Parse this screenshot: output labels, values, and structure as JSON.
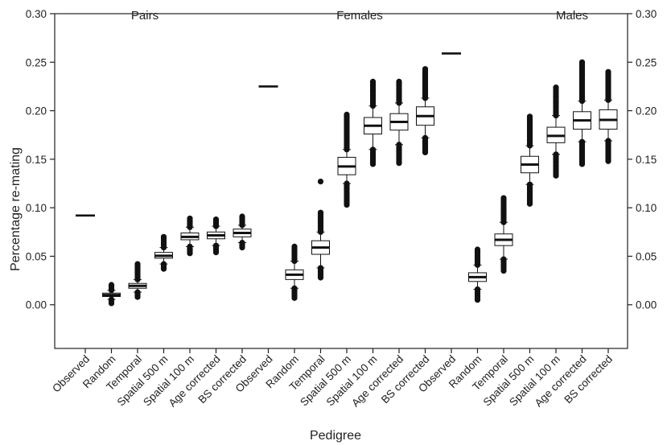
{
  "chart_data": {
    "type": "boxplot",
    "ylabel": "Percentage re-mating",
    "xlabel": "Pedigree",
    "ylim": [
      -0.045,
      0.3
    ],
    "yticks": [
      "0.00",
      "0.05",
      "0.10",
      "0.15",
      "0.20",
      "0.25",
      "0.30"
    ],
    "right_axis_ticks": true,
    "grid": false,
    "groups": [
      {
        "label": "Pairs",
        "items": [
          {
            "category": "Observed",
            "observed": 0.092
          },
          {
            "category": "Random",
            "q1": 0.0085,
            "median": 0.01,
            "q3": 0.012,
            "whisker_low": 0.0055,
            "whisker_high": 0.015,
            "outliers_low": [
              0.0015,
              0.0055
            ],
            "outliers_high": [
              0.015,
              0.0205
            ]
          },
          {
            "category": "Temporal",
            "q1": 0.017,
            "median": 0.0195,
            "q3": 0.022,
            "whisker_low": 0.013,
            "whisker_high": 0.026,
            "outliers_low": [
              0.008,
              0.013
            ],
            "outliers_high": [
              0.026,
              0.042
            ]
          },
          {
            "category": "Spatial 500 m",
            "q1": 0.048,
            "median": 0.0505,
            "q3": 0.054,
            "whisker_low": 0.042,
            "whisker_high": 0.059,
            "outliers_low": [
              0.037,
              0.042
            ],
            "outliers_high": [
              0.059,
              0.07
            ]
          },
          {
            "category": "Spatial 100 m",
            "q1": 0.067,
            "median": 0.07,
            "q3": 0.074,
            "whisker_low": 0.06,
            "whisker_high": 0.08,
            "outliers_low": [
              0.053,
              0.06
            ],
            "outliers_high": [
              0.08,
              0.089
            ]
          },
          {
            "category": "Age corrected",
            "q1": 0.068,
            "median": 0.0715,
            "q3": 0.075,
            "whisker_low": 0.061,
            "whisker_high": 0.081,
            "outliers_low": [
              0.054,
              0.061
            ],
            "outliers_high": [
              0.081,
              0.088
            ]
          },
          {
            "category": "BS corrected",
            "q1": 0.07,
            "median": 0.074,
            "q3": 0.078,
            "whisker_low": 0.064,
            "whisker_high": 0.082,
            "outliers_low": [
              0.059,
              0.064
            ],
            "outliers_high": [
              0.082,
              0.091
            ]
          }
        ]
      },
      {
        "label": "Females",
        "items": [
          {
            "category": "Observed",
            "observed": 0.225
          },
          {
            "category": "Random",
            "q1": 0.026,
            "median": 0.031,
            "q3": 0.036,
            "whisker_low": 0.017,
            "whisker_high": 0.045,
            "outliers_low": [
              0.007,
              0.017
            ],
            "outliers_high": [
              0.045,
              0.06
            ]
          },
          {
            "category": "Temporal",
            "q1": 0.052,
            "median": 0.059,
            "q3": 0.066,
            "whisker_low": 0.038,
            "whisker_high": 0.075,
            "outliers_low": [
              0.028,
              0.038
            ],
            "outliers_high": [
              0.075,
              0.095
            ]
          },
          {
            "category": "Spatial 500 m",
            "q1": 0.134,
            "median": 0.1425,
            "q3": 0.152,
            "whisker_low": 0.125,
            "whisker_high": 0.16,
            "outliers_low": [
              0.103,
              0.125
            ],
            "outliers_high": [
              0.16,
              0.196
            ]
          },
          {
            "category": "Spatial 100 m",
            "q1": 0.176,
            "median": 0.1845,
            "q3": 0.193,
            "whisker_low": 0.16,
            "whisker_high": 0.205,
            "outliers_low": [
              0.145,
              0.16
            ],
            "outliers_high": [
              0.205,
              0.23
            ]
          },
          {
            "category": "Age corrected",
            "q1": 0.18,
            "median": 0.1885,
            "q3": 0.197,
            "whisker_low": 0.165,
            "whisker_high": 0.208,
            "outliers_low": [
              0.146,
              0.165
            ],
            "outliers_high": [
              0.208,
              0.23
            ]
          },
          {
            "category": "BS corrected",
            "q1": 0.185,
            "median": 0.1945,
            "q3": 0.204,
            "whisker_low": 0.172,
            "whisker_high": 0.213,
            "outliers_low": [
              0.157,
              0.172
            ],
            "outliers_high": [
              0.213,
              0.243
            ]
          }
        ]
      },
      {
        "label": "Males",
        "items": [
          {
            "category": "Observed",
            "observed": 0.259
          },
          {
            "category": "Random",
            "q1": 0.024,
            "median": 0.0285,
            "q3": 0.033,
            "whisker_low": 0.016,
            "whisker_high": 0.041,
            "outliers_low": [
              0.005,
              0.016
            ],
            "outliers_high": [
              0.041,
              0.057
            ]
          },
          {
            "category": "Temporal",
            "q1": 0.061,
            "median": 0.067,
            "q3": 0.073,
            "whisker_low": 0.047,
            "whisker_high": 0.085,
            "outliers_low": [
              0.035,
              0.047
            ],
            "outliers_high": [
              0.085,
              0.11
            ]
          },
          {
            "category": "Spatial 500 m",
            "q1": 0.136,
            "median": 0.1445,
            "q3": 0.153,
            "whisker_low": 0.124,
            "whisker_high": 0.164,
            "outliers_low": [
              0.104,
              0.124
            ],
            "outliers_high": [
              0.164,
              0.194
            ]
          },
          {
            "category": "Spatial 100 m",
            "q1": 0.167,
            "median": 0.174,
            "q3": 0.183,
            "whisker_low": 0.155,
            "whisker_high": 0.195,
            "outliers_low": [
              0.133,
              0.155
            ],
            "outliers_high": [
              0.195,
              0.224
            ]
          },
          {
            "category": "Age corrected",
            "q1": 0.181,
            "median": 0.19,
            "q3": 0.199,
            "whisker_low": 0.168,
            "whisker_high": 0.21,
            "outliers_low": [
              0.145,
              0.168
            ],
            "outliers_high": [
              0.21,
              0.25
            ]
          },
          {
            "category": "BS corrected",
            "q1": 0.181,
            "median": 0.1905,
            "q3": 0.201,
            "whisker_low": 0.169,
            "whisker_high": 0.211,
            "outliers_low": [
              0.148,
              0.169
            ],
            "outliers_high": [
              0.211,
              0.24
            ]
          }
        ]
      }
    ],
    "extra_outliers": [
      {
        "group": 1,
        "item": 2,
        "value": 0.127
      }
    ],
    "colors": {
      "axis": "#222222",
      "box_fill": "#ffffff",
      "marks": "#111111"
    }
  }
}
